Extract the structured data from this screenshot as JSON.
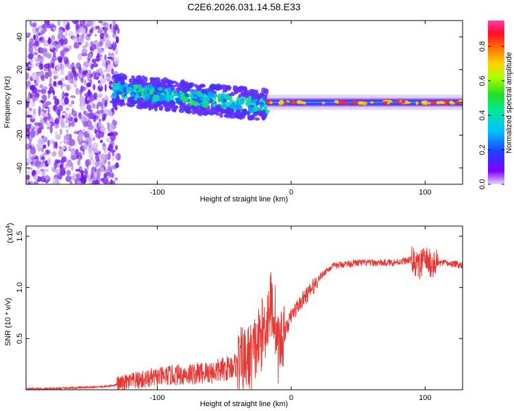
{
  "chart_data": [
    {
      "type": "heatmap",
      "title": "C2E6.2026.031.14.58.E33",
      "xlabel": "Height of straight line (km)",
      "ylabel": "Frequency (Hz)",
      "xlim": [
        -198,
        128
      ],
      "ylim": [
        -50,
        50
      ],
      "x_ticks": [
        -100,
        0,
        100
      ],
      "y_ticks": [
        -40,
        -20,
        0,
        20,
        40
      ],
      "colorbar": {
        "label": "Normalized spectral amplitude",
        "range": [
          0,
          0.95
        ],
        "ticks": [
          0.0,
          0.2,
          0.4,
          0.6,
          0.8
        ]
      },
      "description_regions": [
        {
          "x_range": [
            -198,
            -133
          ],
          "freq_range": [
            -50,
            50
          ],
          "amplitude": "low, scattered"
        },
        {
          "x_range": [
            -133,
            -18
          ],
          "freq_center_start": 8,
          "freq_center_end": -2,
          "amplitude": 0.35
        },
        {
          "x_range": [
            -18,
            128
          ],
          "freq_center": 0,
          "amplitude": 0.5
        }
      ]
    },
    {
      "type": "line",
      "title": "",
      "xlabel": "Height of straight line (km)",
      "ylabel": "SNR (10 * v/v)",
      "y_scale_label": "(x10",
      "y_scale_exp": "4",
      "xlim": [
        -198,
        128
      ],
      "ylim": [
        0,
        1.6
      ],
      "x_ticks": [
        -100,
        0,
        100
      ],
      "y_ticks": [
        0.5,
        1.0,
        1.5
      ],
      "series": [
        {
          "name": "SNR",
          "color": "#e53935",
          "x": [
            -198,
            -180,
            -160,
            -140,
            -130,
            -120,
            -110,
            -100,
            -90,
            -80,
            -70,
            -60,
            -50,
            -40,
            -30,
            -25,
            -20,
            -15,
            -12,
            -10,
            -5,
            0,
            5,
            10,
            15,
            20,
            25,
            30,
            40,
            50,
            60,
            70,
            80,
            90,
            95,
            100,
            105,
            110,
            120,
            128
          ],
          "values": [
            0.01,
            0.01,
            0.02,
            0.03,
            0.05,
            0.08,
            0.1,
            0.12,
            0.14,
            0.15,
            0.16,
            0.17,
            0.2,
            0.25,
            0.32,
            0.45,
            0.6,
            0.85,
            0.7,
            0.4,
            0.55,
            0.72,
            0.82,
            0.9,
            0.98,
            1.08,
            1.15,
            1.2,
            1.23,
            1.24,
            1.24,
            1.24,
            1.25,
            1.27,
            1.2,
            1.28,
            1.22,
            1.24,
            1.23,
            1.22
          ]
        }
      ]
    }
  ]
}
